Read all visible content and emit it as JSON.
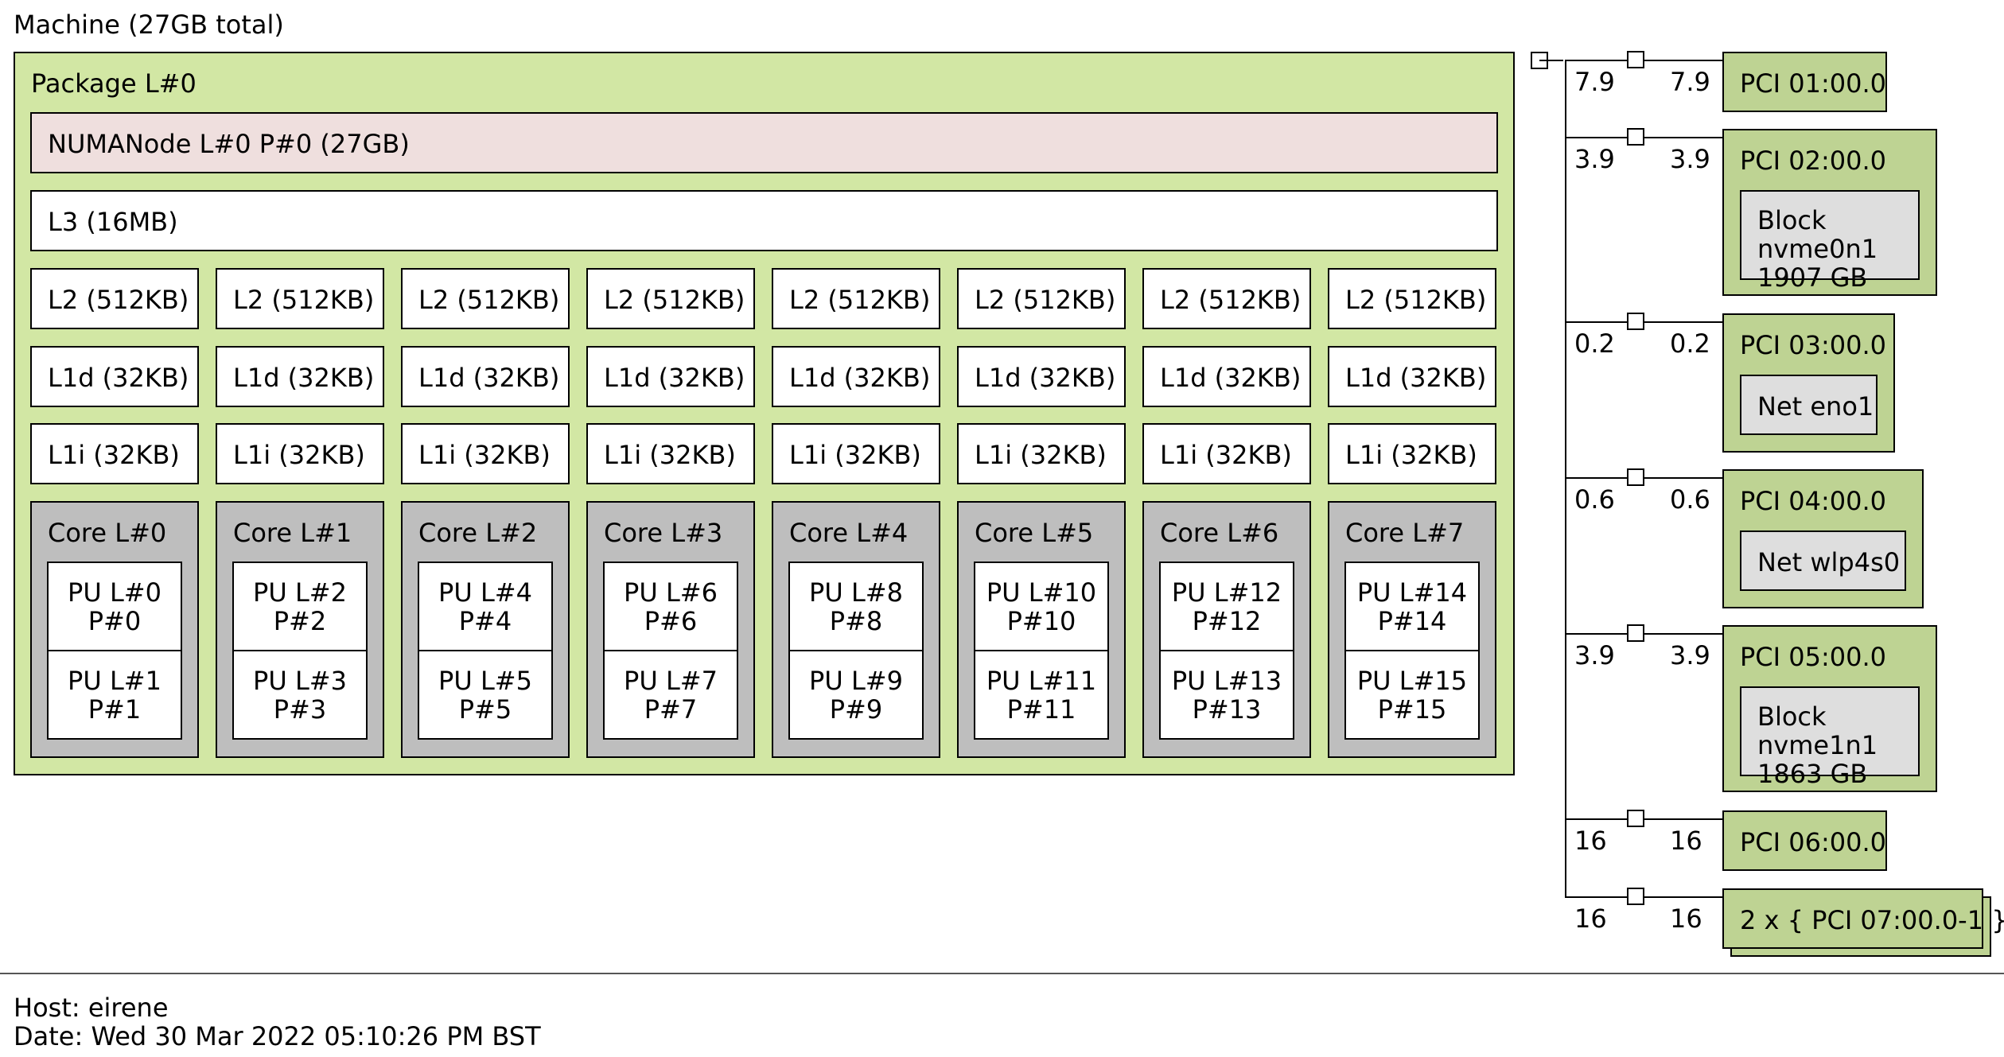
{
  "machine": {
    "title": "Machine (27GB total)"
  },
  "package": {
    "title": "Package L#0",
    "numa": "NUMANode L#0 P#0 (27GB)",
    "l3": "L3 (16MB)",
    "cores": [
      {
        "l2": "L2 (512KB)",
        "l1d": "L1d (32KB)",
        "l1i": "L1i (32KB)",
        "core": "Core L#0",
        "pu_a": "PU L#0\nP#0",
        "pu_b": "PU L#1\nP#1"
      },
      {
        "l2": "L2 (512KB)",
        "l1d": "L1d (32KB)",
        "l1i": "L1i (32KB)",
        "core": "Core L#1",
        "pu_a": "PU L#2\nP#2",
        "pu_b": "PU L#3\nP#3"
      },
      {
        "l2": "L2 (512KB)",
        "l1d": "L1d (32KB)",
        "l1i": "L1i (32KB)",
        "core": "Core L#2",
        "pu_a": "PU L#4\nP#4",
        "pu_b": "PU L#5\nP#5"
      },
      {
        "l2": "L2 (512KB)",
        "l1d": "L1d (32KB)",
        "l1i": "L1i (32KB)",
        "core": "Core L#3",
        "pu_a": "PU L#6\nP#6",
        "pu_b": "PU L#7\nP#7"
      },
      {
        "l2": "L2 (512KB)",
        "l1d": "L1d (32KB)",
        "l1i": "L1i (32KB)",
        "core": "Core L#4",
        "pu_a": "PU L#8\nP#8",
        "pu_b": "PU L#9\nP#9"
      },
      {
        "l2": "L2 (512KB)",
        "l1d": "L1d (32KB)",
        "l1i": "L1i (32KB)",
        "core": "Core L#5",
        "pu_a": "PU L#10\nP#10",
        "pu_b": "PU L#11\nP#11"
      },
      {
        "l2": "L2 (512KB)",
        "l1d": "L1d (32KB)",
        "l1i": "L1i (32KB)",
        "core": "Core L#6",
        "pu_a": "PU L#12\nP#12",
        "pu_b": "PU L#13\nP#13"
      },
      {
        "l2": "L2 (512KB)",
        "l1d": "L1d (32KB)",
        "l1i": "L1i (32KB)",
        "core": "Core L#7",
        "pu_a": "PU L#14\nP#14",
        "pu_b": "PU L#15\nP#15"
      }
    ]
  },
  "pci": [
    {
      "bw_left": "7.9",
      "bw_right": "7.9",
      "label": "PCI 01:00.0"
    },
    {
      "bw_left": "3.9",
      "bw_right": "3.9",
      "label": "PCI 02:00.0",
      "device": "Block nvme0n1\n1907 GB"
    },
    {
      "bw_left": "0.2",
      "bw_right": "0.2",
      "label": "PCI 03:00.0",
      "device": "Net eno1"
    },
    {
      "bw_left": "0.6",
      "bw_right": "0.6",
      "label": "PCI 04:00.0",
      "device": "Net wlp4s0"
    },
    {
      "bw_left": "3.9",
      "bw_right": "3.9",
      "label": "PCI 05:00.0",
      "device": "Block nvme1n1\n1863 GB"
    },
    {
      "bw_left": "16",
      "bw_right": "16",
      "label": "PCI 06:00.0"
    },
    {
      "bw_left": "16",
      "bw_right": "16",
      "label": "2 x { PCI 07:00.0-1 }"
    }
  ],
  "footer": {
    "host": "Host: eirene",
    "date": "Date: Wed 30 Mar 2022 05:10:26 PM BST"
  }
}
